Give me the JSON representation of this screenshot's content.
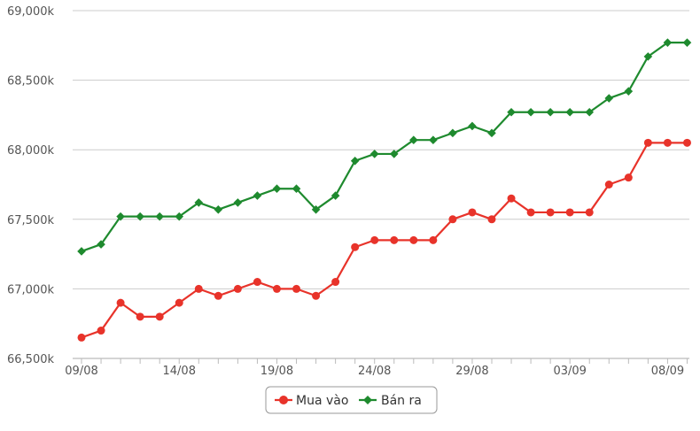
{
  "chart_data": {
    "type": "line",
    "x_tick_labels": [
      "09/08",
      "14/08",
      "19/08",
      "24/08",
      "29/08",
      "03/09",
      "08/09"
    ],
    "x_tick_index": [
      0,
      5,
      10,
      15,
      20,
      25,
      30
    ],
    "y_tick_labels": [
      "66,500k",
      "67,000k",
      "67,500k",
      "68,000k",
      "68,500k",
      "69,000k"
    ],
    "ylim": [
      66500,
      69000
    ],
    "y_step": 500,
    "grid": true,
    "legend_position": "bottom-center",
    "series": [
      {
        "name": "Mua vào",
        "color": "#e8332a",
        "marker": "circle",
        "values": [
          66650,
          66700,
          66900,
          66800,
          66800,
          66900,
          67000,
          66950,
          67000,
          67050,
          67000,
          67000,
          66950,
          67050,
          67300,
          67350,
          67350,
          67350,
          67350,
          67500,
          67550,
          67500,
          67650,
          67550,
          67550,
          67550,
          67550,
          67750,
          67800,
          68050,
          68050,
          68050
        ]
      },
      {
        "name": "Bán ra",
        "color": "#1e8a2e",
        "marker": "diamond",
        "values": [
          67270,
          67320,
          67520,
          67520,
          67520,
          67520,
          67620,
          67570,
          67620,
          67670,
          67720,
          67720,
          67570,
          67670,
          67920,
          67970,
          67970,
          68070,
          68070,
          68120,
          68170,
          68120,
          68270,
          68270,
          68270,
          68270,
          68270,
          68370,
          68420,
          68670,
          68770,
          68770
        ]
      }
    ]
  }
}
